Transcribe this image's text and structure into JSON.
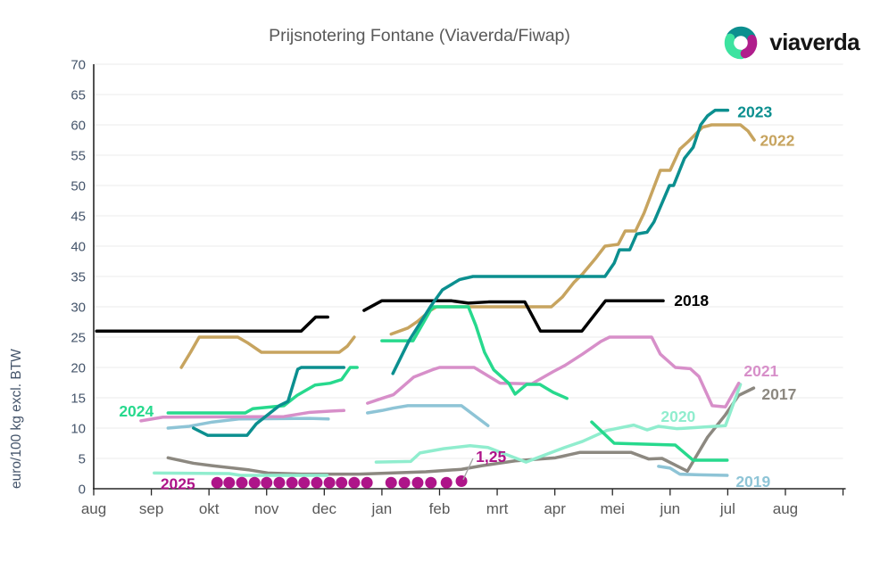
{
  "title": "Prijsnotering Fontane (Viaverda/Fiwap)",
  "logo": {
    "text": "viaverda",
    "icon_colors": {
      "top": "#0C8F8F",
      "bottom_left": "#3DE3A0",
      "bottom_right": "#B01E8C"
    }
  },
  "colors": {
    "background": "#FFFFFF",
    "title": "#595959",
    "axis_labels": "#44546A",
    "month_labels": "#595959",
    "gridline": "#EBEBEB",
    "axis_line": "#262626",
    "annotation_line": "#A6A6A6"
  },
  "chart_data": {
    "type": "line",
    "title": "Prijsnotering Fontane (Viaverda/Fiwap)",
    "ylabel": "euro/100 kg excl. BTW",
    "ylim": [
      0,
      70
    ],
    "ytick_step": 5,
    "x_unit": "month index (0 = aug, 12 = aug of next year)",
    "x_tick_labels": [
      "aug",
      "sep",
      "okt",
      "nov",
      "dec",
      "jan",
      "feb",
      "mrt",
      "apr",
      "mei",
      "jun",
      "jul",
      "aug"
    ],
    "grid": "horizontal only",
    "legend": "inline labels at line ends",
    "series": [
      {
        "name": "2017",
        "color": "#8C8880",
        "style": "line",
        "label": {
          "x": 11.89,
          "y": 15.6
        },
        "segments": [
          [
            [
              1.29,
              5.1
            ],
            [
              1.73,
              4.2
            ],
            [
              2.05,
              3.8
            ],
            [
              2.7,
              3.1
            ],
            [
              3.02,
              2.6
            ],
            [
              3.6,
              2.4
            ],
            [
              4.6,
              2.4
            ],
            [
              5.76,
              2.8
            ],
            [
              6.38,
              3.2
            ],
            [
              6.74,
              3.8
            ],
            [
              7.31,
              4.6
            ],
            [
              8.01,
              5.1
            ],
            [
              8.44,
              6.0
            ],
            [
              9.32,
              6.0
            ],
            [
              9.63,
              4.9
            ],
            [
              9.86,
              5.0
            ],
            [
              10.3,
              2.9
            ],
            [
              10.65,
              8.5
            ],
            [
              10.96,
              12.2
            ],
            [
              11.19,
              15.4
            ],
            [
              11.45,
              16.6
            ]
          ]
        ]
      },
      {
        "name": "2019",
        "color": "#8EC4D6",
        "style": "line",
        "label": {
          "x": 11.44,
          "y": 1.2
        },
        "segments": [
          [
            [
              1.29,
              10.0
            ],
            [
              1.66,
              10.3
            ],
            [
              2.06,
              11.0
            ],
            [
              2.52,
              11.5
            ],
            [
              3.75,
              11.6
            ],
            [
              4.07,
              11.5
            ]
          ],
          [
            [
              4.75,
              12.5
            ],
            [
              5.0,
              12.9
            ],
            [
              5.2,
              13.3
            ],
            [
              5.45,
              13.7
            ],
            [
              6.38,
              13.7
            ],
            [
              6.84,
              10.4
            ]
          ],
          [
            [
              9.8,
              3.7
            ],
            [
              10.0,
              3.4
            ],
            [
              10.17,
              2.4
            ],
            [
              10.5,
              2.3
            ],
            [
              10.99,
              2.2
            ]
          ]
        ]
      },
      {
        "name": "2020",
        "color": "#90EDCE",
        "style": "line",
        "label": {
          "x": 10.14,
          "y": 11.9
        },
        "segments": [
          [
            [
              1.05,
              2.6
            ],
            [
              2.35,
              2.5
            ],
            [
              2.55,
              2.2
            ],
            [
              4.05,
              2.2
            ]
          ],
          [
            [
              4.9,
              4.4
            ],
            [
              5.5,
              4.5
            ],
            [
              5.66,
              5.9
            ],
            [
              6.07,
              6.6
            ],
            [
              6.53,
              7.1
            ],
            [
              6.84,
              6.8
            ],
            [
              7.5,
              4.4
            ],
            [
              8.17,
              6.8
            ],
            [
              8.48,
              7.8
            ],
            [
              8.9,
              9.6
            ],
            [
              9.37,
              10.5
            ],
            [
              9.6,
              9.7
            ],
            [
              9.8,
              10.3
            ],
            [
              10.12,
              9.9
            ],
            [
              10.45,
              10.1
            ],
            [
              10.96,
              10.4
            ],
            [
              11.22,
              17.2
            ]
          ]
        ]
      },
      {
        "name": "2021",
        "color": "#D78FC9",
        "style": "line",
        "label": {
          "x": 11.58,
          "y": 19.4
        },
        "segments": [
          [
            [
              0.82,
              11.2
            ],
            [
              1.2,
              11.8
            ],
            [
              3.3,
              11.9
            ],
            [
              3.75,
              12.6
            ],
            [
              4.1,
              12.8
            ],
            [
              4.34,
              12.9
            ]
          ],
          [
            [
              4.75,
              14.1
            ],
            [
              5.0,
              14.9
            ],
            [
              5.2,
              15.5
            ],
            [
              5.37,
              16.9
            ],
            [
              5.55,
              18.4
            ],
            [
              5.9,
              19.7
            ],
            [
              6.0,
              20.0
            ],
            [
              6.6,
              20.0
            ],
            [
              7.05,
              17.4
            ],
            [
              7.6,
              17.3
            ],
            [
              7.97,
              19.3
            ],
            [
              8.17,
              20.3
            ],
            [
              8.48,
              22.2
            ],
            [
              8.8,
              24.3
            ],
            [
              8.95,
              25.0
            ],
            [
              9.68,
              25.0
            ],
            [
              9.83,
              22.2
            ],
            [
              10.09,
              20.0
            ],
            [
              10.35,
              19.8
            ],
            [
              10.5,
              18.5
            ],
            [
              10.73,
              13.7
            ],
            [
              10.96,
              13.5
            ],
            [
              11.19,
              17.4
            ]
          ]
        ]
      },
      {
        "name": "2022",
        "color": "#C7A45F",
        "style": "line",
        "label": {
          "x": 11.86,
          "y": 57.4
        },
        "segments": [
          [
            [
              1.52,
              20.0
            ],
            [
              1.68,
              22.5
            ],
            [
              1.83,
              25.0
            ],
            [
              2.5,
              25.0
            ],
            [
              2.68,
              24.0
            ],
            [
              2.91,
              22.5
            ],
            [
              4.26,
              22.5
            ],
            [
              4.4,
              23.5
            ],
            [
              4.52,
              25.0
            ]
          ],
          [
            [
              5.16,
              25.5
            ],
            [
              5.45,
              26.5
            ],
            [
              5.62,
              27.6
            ],
            [
              5.84,
              29.4
            ],
            [
              5.95,
              30.0
            ],
            [
              7.94,
              30.0
            ],
            [
              8.13,
              31.6
            ],
            [
              8.33,
              34.0
            ],
            [
              8.48,
              35.4
            ],
            [
              8.7,
              37.9
            ],
            [
              8.87,
              40.0
            ],
            [
              9.1,
              40.3
            ],
            [
              9.22,
              42.5
            ],
            [
              9.4,
              42.5
            ],
            [
              9.55,
              45.5
            ],
            [
              9.83,
              52.5
            ],
            [
              10.0,
              52.5
            ],
            [
              10.17,
              56.0
            ],
            [
              10.32,
              57.3
            ],
            [
              10.56,
              59.6
            ],
            [
              10.72,
              60.0
            ],
            [
              11.22,
              60.0
            ],
            [
              11.35,
              59.0
            ],
            [
              11.46,
              57.5
            ]
          ]
        ]
      },
      {
        "name": "2018",
        "color": "#000000",
        "style": "line",
        "label": {
          "x": 10.37,
          "y": 31.0
        },
        "segments": [
          [
            [
              0.05,
              26.0
            ],
            [
              3.6,
              26.0
            ],
            [
              3.85,
              28.3
            ],
            [
              4.06,
              28.3
            ]
          ],
          [
            [
              4.69,
              29.4
            ],
            [
              5.0,
              31.0
            ],
            [
              6.2,
              31.0
            ],
            [
              6.5,
              30.6
            ],
            [
              6.85,
              30.8
            ],
            [
              7.48,
              30.8
            ],
            [
              7.75,
              26.0
            ],
            [
              8.47,
              26.0
            ],
            [
              8.88,
              31.0
            ],
            [
              9.88,
              31.0
            ]
          ]
        ]
      },
      {
        "name": "2024",
        "color": "#27D98D",
        "style": "line",
        "label": {
          "x": 0.74,
          "y": 12.8
        },
        "segments": [
          [
            [
              1.29,
              12.5
            ],
            [
              2.63,
              12.5
            ],
            [
              2.76,
              13.2
            ],
            [
              3.3,
              13.7
            ],
            [
              3.53,
              15.4
            ],
            [
              3.84,
              17.1
            ],
            [
              4.1,
              17.4
            ],
            [
              4.3,
              18.0
            ],
            [
              4.45,
              20.0
            ],
            [
              4.57,
              20.0
            ]
          ],
          [
            [
              5.0,
              24.4
            ],
            [
              5.54,
              24.4
            ],
            [
              5.84,
              29.4
            ],
            [
              5.9,
              30.0
            ],
            [
              6.5,
              30.0
            ],
            [
              6.63,
              26.9
            ],
            [
              6.78,
              22.5
            ],
            [
              6.94,
              19.6
            ],
            [
              7.2,
              17.4
            ],
            [
              7.31,
              15.6
            ],
            [
              7.51,
              17.2
            ],
            [
              7.74,
              17.2
            ],
            [
              7.97,
              15.9
            ],
            [
              8.21,
              14.9
            ]
          ],
          [
            [
              8.64,
              11.0
            ],
            [
              9.03,
              7.5
            ],
            [
              10.09,
              7.2
            ],
            [
              10.4,
              4.7
            ],
            [
              10.99,
              4.7
            ]
          ]
        ]
      },
      {
        "name": "2023",
        "color": "#0B8F8F",
        "style": "line",
        "label": {
          "x": 11.47,
          "y": 62.1
        },
        "segments": [
          [
            [
              1.73,
              10.0
            ],
            [
              1.98,
              8.8
            ],
            [
              2.66,
              8.8
            ],
            [
              2.82,
              10.7
            ],
            [
              3.22,
              13.7
            ],
            [
              3.37,
              14.4
            ],
            [
              3.54,
              19.7
            ],
            [
              3.6,
              20.0
            ],
            [
              4.34,
              20.0
            ]
          ],
          [
            [
              5.19,
              19.0
            ],
            [
              5.47,
              24.4
            ],
            [
              5.84,
              30.0
            ],
            [
              6.05,
              32.8
            ],
            [
              6.35,
              34.5
            ],
            [
              6.58,
              35.0
            ],
            [
              8.87,
              35.0
            ],
            [
              9.03,
              37.2
            ],
            [
              9.12,
              39.4
            ],
            [
              9.3,
              39.4
            ],
            [
              9.42,
              42.0
            ],
            [
              9.6,
              42.3
            ],
            [
              9.72,
              44.0
            ],
            [
              9.99,
              50.0
            ],
            [
              10.06,
              50.0
            ],
            [
              10.25,
              54.5
            ],
            [
              10.4,
              56.3
            ],
            [
              10.53,
              60.0
            ],
            [
              10.65,
              61.5
            ],
            [
              10.78,
              62.4
            ],
            [
              11.0,
              62.4
            ]
          ]
        ]
      },
      {
        "name": "2025",
        "color": "#AE1489",
        "style": "dots",
        "dot_radius": 6.5,
        "label": {
          "x": 1.46,
          "y": 0.8
        },
        "points": [
          [
            2.14,
            1.0
          ],
          [
            2.35,
            1.0
          ],
          [
            2.57,
            1.0
          ],
          [
            2.79,
            1.0
          ],
          [
            3.0,
            1.0
          ],
          [
            3.22,
            1.0
          ],
          [
            3.44,
            1.0
          ],
          [
            3.65,
            1.0
          ],
          [
            3.87,
            1.0
          ],
          [
            4.09,
            1.0
          ],
          [
            4.3,
            1.0
          ],
          [
            4.52,
            1.0
          ],
          [
            4.74,
            1.0
          ],
          [
            5.16,
            1.0
          ],
          [
            5.39,
            1.0
          ],
          [
            5.62,
            1.0
          ],
          [
            5.85,
            1.0
          ],
          [
            6.12,
            1.0
          ],
          [
            6.38,
            1.25
          ]
        ],
        "annotation": {
          "text": "1,25",
          "text_x": 6.63,
          "text_y": 5.3,
          "line_from": [
            6.41,
            1.5
          ],
          "line_to": [
            6.58,
            5.0
          ]
        }
      }
    ]
  }
}
